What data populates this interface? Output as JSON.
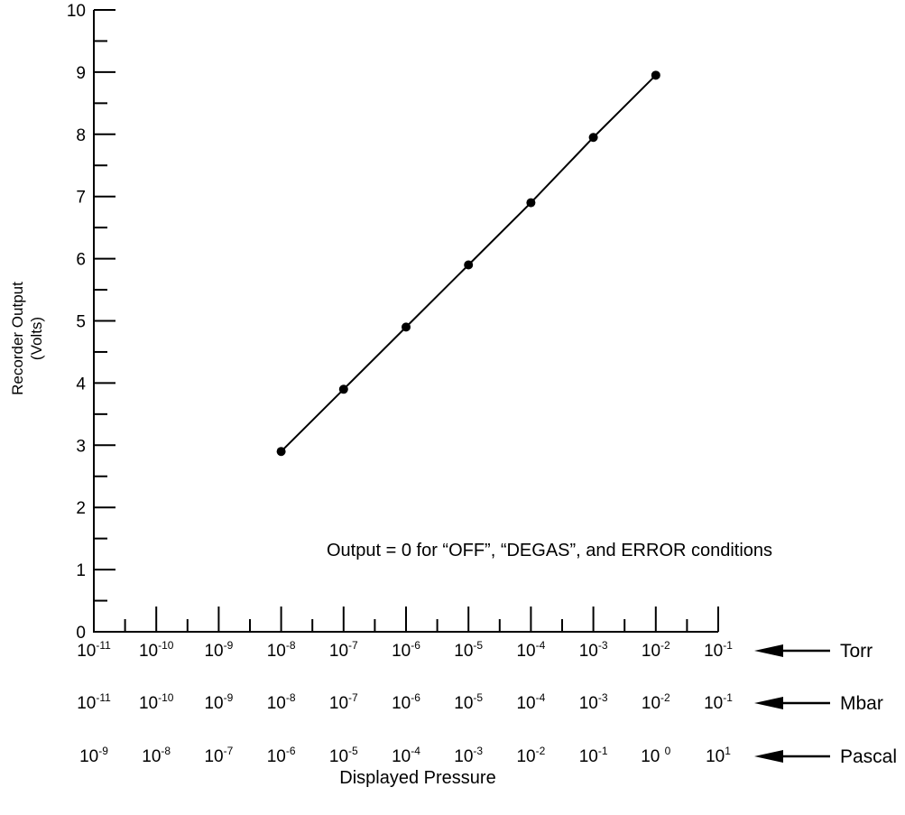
{
  "chart_data": {
    "type": "line",
    "ylabel": "Recorder Output",
    "ylabel_units": "(Volts)",
    "xlabel": "Displayed Pressure",
    "yticks": [
      "0",
      "1",
      "2",
      "3",
      "4",
      "5",
      "6",
      "7",
      "8",
      "9",
      "10"
    ],
    "ylim": [
      0,
      10
    ],
    "x_scale": "log",
    "xlim_torr": [
      "1e-11",
      "1e-1"
    ],
    "annotation": "Output = 0 for “OFF”, “DEGAS”, and ERROR conditions",
    "scales": [
      {
        "unit": "Torr",
        "ticks": [
          [
            "10",
            "-11"
          ],
          [
            "10",
            "-10"
          ],
          [
            "10",
            "-9"
          ],
          [
            "10",
            "-8"
          ],
          [
            "10",
            "-7"
          ],
          [
            "10",
            "-6"
          ],
          [
            "10",
            "-5"
          ],
          [
            "10",
            "-4"
          ],
          [
            "10",
            "-3"
          ],
          [
            "10",
            "-2"
          ],
          [
            "10",
            "-1"
          ]
        ]
      },
      {
        "unit": "Mbar",
        "ticks": [
          [
            "10",
            "-11"
          ],
          [
            "10",
            "-10"
          ],
          [
            "10",
            "-9"
          ],
          [
            "10",
            "-8"
          ],
          [
            "10",
            "-7"
          ],
          [
            "10",
            "-6"
          ],
          [
            "10",
            "-5"
          ],
          [
            "10",
            "-4"
          ],
          [
            "10",
            "-3"
          ],
          [
            "10",
            "-2"
          ],
          [
            "10",
            "-1"
          ]
        ]
      },
      {
        "unit": "Pascal",
        "ticks": [
          [
            "10",
            "-9"
          ],
          [
            "10",
            "-8"
          ],
          [
            "10",
            "-7"
          ],
          [
            "10",
            "-6"
          ],
          [
            "10",
            "-5"
          ],
          [
            "10",
            "-4"
          ],
          [
            "10",
            "-3"
          ],
          [
            "10",
            "-2"
          ],
          [
            "10",
            "-1"
          ],
          [
            "10 ",
            "0"
          ],
          [
            "10",
            "1"
          ]
        ]
      }
    ],
    "series": [
      {
        "x_torr": [
          "1e-8",
          "1e-7",
          "1e-6",
          "1e-5",
          "1e-4",
          "1e-3",
          "1e-2"
        ],
        "y": [
          2.9,
          3.9,
          4.9,
          5.9,
          6.9,
          7.95,
          8.95
        ]
      }
    ]
  }
}
